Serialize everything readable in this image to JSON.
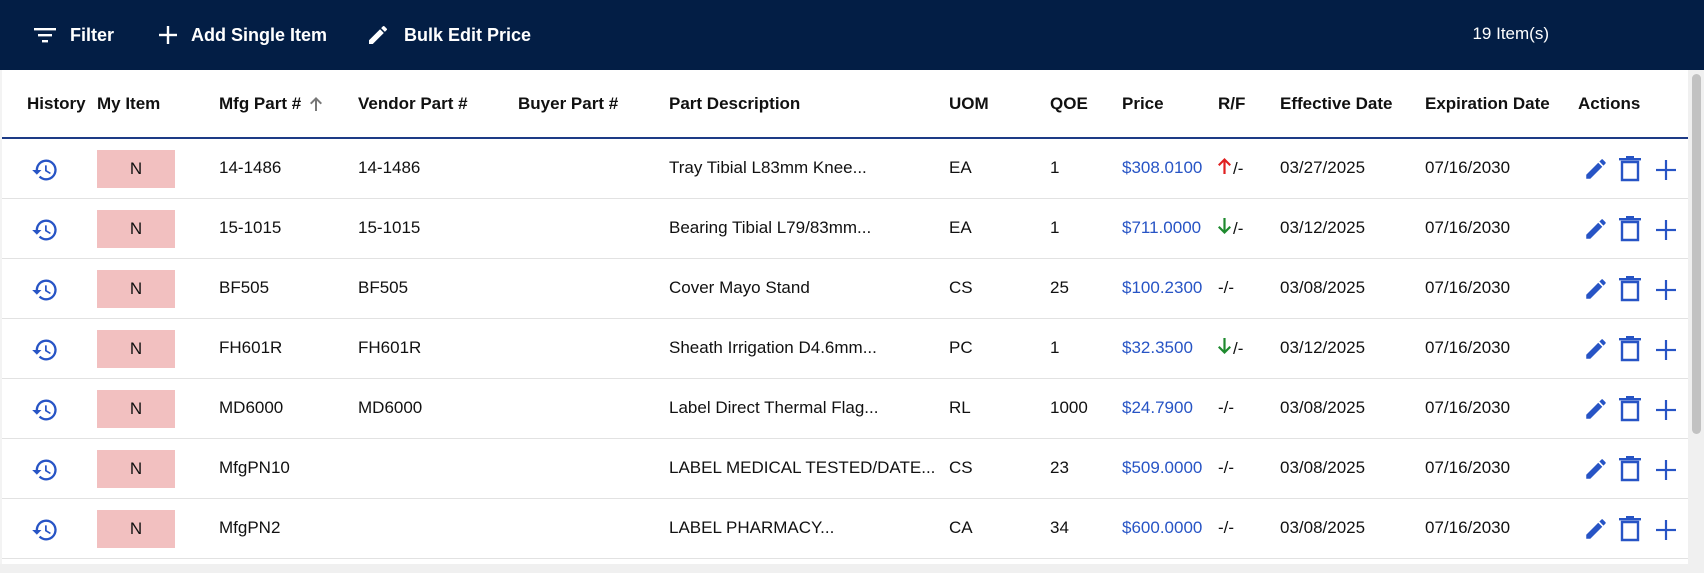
{
  "toolbar": {
    "filter_label": "Filter",
    "add_label": "Add Single Item",
    "bulk_label": "Bulk Edit Price",
    "item_count": "19 Item(s)"
  },
  "columns": {
    "history": "History",
    "my_item": "My Item",
    "mfg_part": "Mfg Part #",
    "vendor_part": "Vendor Part #",
    "buyer_part": "Buyer Part #",
    "description": "Part Description",
    "uom": "UOM",
    "qoe": "QOE",
    "price": "Price",
    "rf": "R/F",
    "effective": "Effective Date",
    "expiration": "Expiration Date",
    "actions": "Actions"
  },
  "rows": [
    {
      "my_item": "N",
      "mfg": "14-1486",
      "vendor": "14-1486",
      "buyer": "",
      "desc": "Tray Tibial L83mm Knee...",
      "uom": "EA",
      "qoe": "1",
      "price": "$308.0100",
      "rf_arrow": "up",
      "rf": "/-",
      "eff": "03/27/2025",
      "exp": "07/16/2030"
    },
    {
      "my_item": "N",
      "mfg": "15-1015",
      "vendor": "15-1015",
      "buyer": "",
      "desc": "Bearing Tibial L79/83mm...",
      "uom": "EA",
      "qoe": "1",
      "price": "$711.0000",
      "rf_arrow": "down",
      "rf": "/-",
      "eff": "03/12/2025",
      "exp": "07/16/2030"
    },
    {
      "my_item": "N",
      "mfg": "BF505",
      "vendor": "BF505",
      "buyer": "",
      "desc": "Cover Mayo Stand",
      "uom": "CS",
      "qoe": "25",
      "price": "$100.2300",
      "rf_arrow": "none",
      "rf": "-/-",
      "eff": "03/08/2025",
      "exp": "07/16/2030"
    },
    {
      "my_item": "N",
      "mfg": "FH601R",
      "vendor": "FH601R",
      "buyer": "",
      "desc": "Sheath Irrigation D4.6mm...",
      "uom": "PC",
      "qoe": "1",
      "price": "$32.3500",
      "rf_arrow": "down",
      "rf": "/-",
      "eff": "03/12/2025",
      "exp": "07/16/2030"
    },
    {
      "my_item": "N",
      "mfg": "MD6000",
      "vendor": "MD6000",
      "buyer": "",
      "desc": "Label Direct Thermal Flag...",
      "uom": "RL",
      "qoe": "1000",
      "price": "$24.7900",
      "rf_arrow": "none",
      "rf": "-/-",
      "eff": "03/08/2025",
      "exp": "07/16/2030"
    },
    {
      "my_item": "N",
      "mfg": "MfgPN10",
      "vendor": "",
      "buyer": "",
      "desc": "LABEL MEDICAL TESTED/DATE...",
      "uom": "CS",
      "qoe": "23",
      "price": "$509.0000",
      "rf_arrow": "none",
      "rf": "-/-",
      "eff": "03/08/2025",
      "exp": "07/16/2030"
    },
    {
      "my_item": "N",
      "mfg": "MfgPN2",
      "vendor": "",
      "buyer": "",
      "desc": "LABEL PHARMACY...",
      "uom": "CA",
      "qoe": "34",
      "price": "$600.0000",
      "rf_arrow": "none",
      "rf": "-/-",
      "eff": "03/08/2025",
      "exp": "07/16/2030"
    }
  ],
  "colors": {
    "toolbar_bg": "#031e45",
    "accent": "#2754c5",
    "my_item_bg": "#f2c0c0",
    "arrow_up": "#e02020",
    "arrow_down": "#1e8a2e"
  },
  "icons": {
    "filter": "filter-icon",
    "add": "plus-icon",
    "bulk": "pencil-icon",
    "history": "history-icon",
    "sort": "sort-up-icon",
    "edit": "edit-icon",
    "delete": "trash-icon",
    "row_add": "plus-icon"
  }
}
